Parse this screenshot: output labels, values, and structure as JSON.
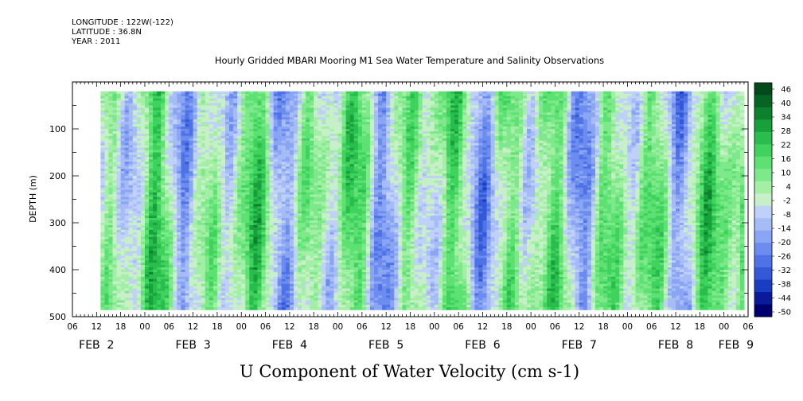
{
  "header": {
    "longitude": "LONGITUDE : 122W(-122)",
    "latitude": "LATITUDE : 36.8N",
    "year": "YEAR : 2011"
  },
  "chart_data": {
    "type": "heatmap",
    "title": "Hourly Gridded MBARI Mooring M1 Sea Water Temperature and Salinity Observations",
    "xlabel": "",
    "ylabel": "DEPTH (m)",
    "variable": "U Component of Water Velocity (cm s-1)",
    "y_reversed": true,
    "ylim": [
      0,
      500
    ],
    "y_ticks": [
      100,
      200,
      300,
      400,
      500
    ],
    "x_hours_start": 6,
    "x_hours_end": 174,
    "x_tick_labels": [
      "06",
      "12",
      "18",
      "00",
      "06",
      "12",
      "18",
      "00",
      "06",
      "12",
      "18",
      "00",
      "06",
      "12",
      "18",
      "00",
      "06",
      "12",
      "18",
      "00",
      "06",
      "12",
      "18",
      "00",
      "06",
      "12",
      "18",
      "00",
      "06"
    ],
    "date_labels": [
      {
        "label": "FEB  2",
        "hour": 12
      },
      {
        "label": "FEB  3",
        "hour": 36
      },
      {
        "label": "FEB  4",
        "hour": 60
      },
      {
        "label": "FEB  5",
        "hour": 84
      },
      {
        "label": "FEB  6",
        "hour": 108
      },
      {
        "label": "FEB  7",
        "hour": 132
      },
      {
        "label": "FEB  8",
        "hour": 156
      },
      {
        "label": "FEB  9",
        "hour": 171
      }
    ],
    "data_extent": {
      "hour_start": 13,
      "hour_end": 173,
      "depth_start": 20,
      "depth_end": 485
    },
    "colorbar": {
      "labels": [
        "46",
        "40",
        "34",
        "28",
        "22",
        "16",
        "10",
        "4",
        "-2",
        "-8",
        "-14",
        "-20",
        "-26",
        "-32",
        "-38",
        "-44",
        "-50"
      ],
      "min": -50,
      "max": 50,
      "colors": [
        "#000070",
        "#0a1a9a",
        "#1a3cc0",
        "#3358d8",
        "#4f73e6",
        "#6c8cef",
        "#8aa5f3",
        "#a6bcf6",
        "#bfd0f9",
        "#c8f0c8",
        "#a4efa6",
        "#7ee98a",
        "#5de172",
        "#3fd35e",
        "#28bd4c",
        "#18a03c",
        "#0c822e",
        "#066424",
        "#024a1a"
      ]
    },
    "summary": "Depth-time section (2011 Feb 2 to Feb 9) of U velocity: alternating vertical bands of eastward (green, up to ~+45) and westward (blue, down to ~-35) flow over 20-485 m depth."
  }
}
